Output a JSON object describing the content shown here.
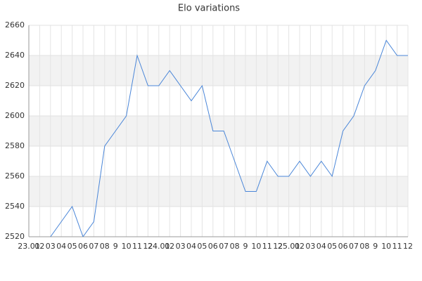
{
  "chart_data": {
    "type": "line",
    "title": "Elo variations",
    "categories": [
      "23.01",
      "02",
      "03",
      "04",
      "05",
      "06",
      "07",
      "08",
      "9",
      "10",
      "11",
      "12",
      "24.01",
      "02",
      "03",
      "04",
      "05",
      "06",
      "07",
      "08",
      "9",
      "10",
      "11",
      "12",
      "25.01",
      "02",
      "03",
      "04",
      "05",
      "06",
      "07",
      "08",
      "9",
      "10",
      "11",
      "12"
    ],
    "values": [
      null,
      null,
      2520,
      2530,
      2540,
      2520,
      2530,
      2580,
      2590,
      2600,
      2640,
      2620,
      2620,
      2630,
      2620,
      2610,
      2620,
      2590,
      2590,
      2570,
      2550,
      2550,
      2570,
      2560,
      2560,
      2570,
      2560,
      2570,
      2560,
      2590,
      2600,
      2620,
      2630,
      2650,
      2640,
      2640
    ],
    "color": "#4a86d8",
    "ylim": [
      2520,
      2660
    ],
    "yticks": [
      2520,
      2540,
      2560,
      2580,
      2600,
      2620,
      2640,
      2660
    ],
    "grid": true
  }
}
